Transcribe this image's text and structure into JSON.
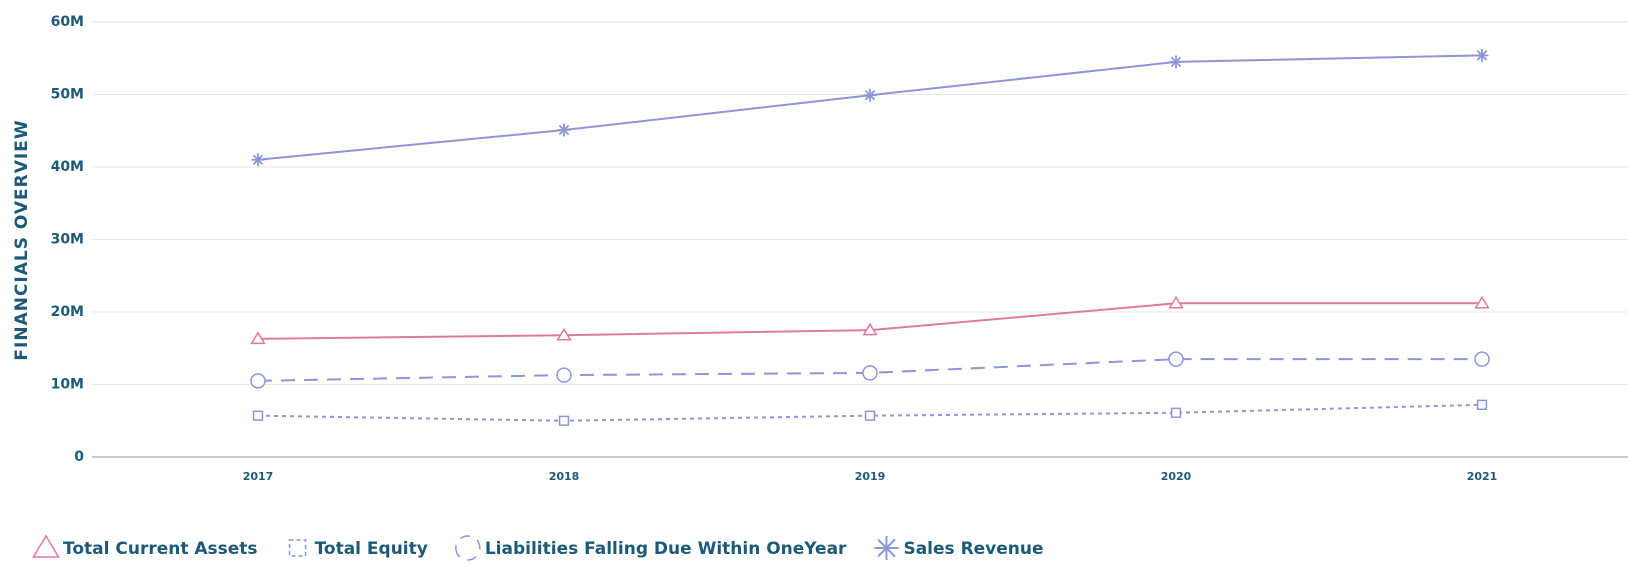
{
  "chart_data": {
    "type": "line",
    "y_label": "FINANCIALS OVERVIEW",
    "categories": [
      "2017",
      "2018",
      "2019",
      "2020",
      "2021"
    ],
    "series": [
      {
        "name": "Total Current Assets",
        "color": "#e07a9b",
        "marker": "triangle",
        "dash": "none",
        "values": [
          16300000,
          16800000,
          17500000,
          21200000,
          21200000
        ]
      },
      {
        "name": "Total Equity",
        "color": "#8c96d8",
        "marker": "square",
        "dash": "4,4",
        "values": [
          5700000,
          5000000,
          5700000,
          6100000,
          7200000
        ]
      },
      {
        "name": "Liabilities Falling Due Within OneYear",
        "color": "#8c96d8",
        "marker": "circle",
        "dash": "14,9",
        "values": [
          10500000,
          11300000,
          11600000,
          13500000,
          13500000
        ]
      },
      {
        "name": "Sales Revenue",
        "color": "#8c96d8",
        "marker": "star",
        "dash": "none",
        "values": [
          41000000,
          45100000,
          49900000,
          54500000,
          55400000
        ]
      }
    ],
    "ylim": [
      0,
      60000000
    ],
    "yticks": [
      0,
      {
        "value": 10000000,
        "label": "10M"
      },
      {
        "value": 20000000,
        "label": "20M"
      },
      {
        "value": 30000000,
        "label": "30M"
      },
      {
        "value": 40000000,
        "label": "40M"
      },
      {
        "value": 50000000,
        "label": "50M"
      },
      {
        "value": 60000000,
        "label": "60M"
      }
    ],
    "grid": true,
    "legend": "bottom-left"
  }
}
